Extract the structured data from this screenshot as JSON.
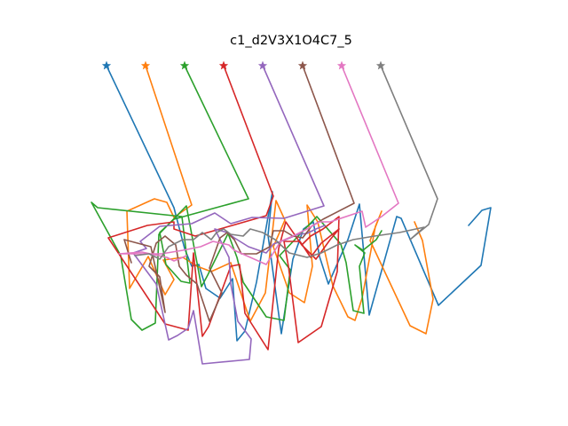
{
  "chart_data": {
    "type": "line",
    "title": "c1_d2V3X1O4C7_5",
    "xlabel": "",
    "ylabel": "",
    "axes_visible": false,
    "grid": false,
    "legend": "none",
    "start_marker": "star",
    "series": [
      {
        "color": "#1f77b4",
        "points": [
          [
            120,
            74
          ],
          [
            196,
            234
          ],
          [
            208,
            280
          ],
          [
            216,
            300
          ],
          [
            224,
            298
          ],
          [
            232,
            325
          ],
          [
            248,
            336
          ],
          [
            262,
            314
          ],
          [
            267,
            384
          ],
          [
            276,
            373
          ],
          [
            289,
            318
          ],
          [
            307,
            216
          ],
          [
            302,
            265
          ],
          [
            317,
            376
          ],
          [
            330,
            292
          ],
          [
            342,
            258
          ],
          [
            353,
            250
          ],
          [
            360,
            289
          ],
          [
            370,
            320
          ],
          [
            392,
            270
          ],
          [
            405,
            230
          ],
          [
            416,
            355
          ],
          [
            447,
            244
          ],
          [
            452,
            246
          ],
          [
            494,
            344
          ],
          [
            542,
            299
          ],
          [
            553,
            234
          ],
          [
            543,
            237
          ],
          [
            528,
            254
          ]
        ]
      },
      {
        "color": "#ff7f0e",
        "points": [
          [
            164,
            74
          ],
          [
            216,
            231
          ],
          [
            196,
            245
          ],
          [
            188,
            228
          ],
          [
            174,
            224
          ],
          [
            143,
            238
          ],
          [
            146,
            325
          ],
          [
            167,
            289
          ],
          [
            186,
            332
          ],
          [
            196,
            315
          ],
          [
            184,
            293
          ],
          [
            206,
            290
          ],
          [
            222,
            300
          ],
          [
            238,
            306
          ],
          [
            260,
            296
          ],
          [
            282,
            362
          ],
          [
            299,
            330
          ],
          [
            311,
            226
          ],
          [
            321,
            248
          ],
          [
            308,
            278
          ],
          [
            326,
            330
          ],
          [
            343,
            341
          ],
          [
            352,
            300
          ],
          [
            346,
            231
          ],
          [
            358,
            250
          ],
          [
            375,
            322
          ],
          [
            392,
            357
          ],
          [
            400,
            361
          ],
          [
            408,
            336
          ],
          [
            423,
            255
          ],
          [
            430,
            238
          ],
          [
            417,
            271
          ],
          [
            462,
            367
          ],
          [
            480,
            376
          ],
          [
            488,
            337
          ],
          [
            476,
            271
          ],
          [
            467,
            250
          ]
        ]
      },
      {
        "color": "#2ca02c",
        "points": [
          [
            208,
            74
          ],
          [
            280,
            224
          ],
          [
            196,
            247
          ],
          [
            180,
            262
          ],
          [
            187,
            298
          ],
          [
            204,
            317
          ],
          [
            214,
            319
          ],
          [
            205,
            244
          ],
          [
            110,
            234
          ],
          [
            103,
            228
          ],
          [
            136,
            288
          ],
          [
            148,
            360
          ],
          [
            160,
            372
          ],
          [
            175,
            364
          ],
          [
            179,
            264
          ],
          [
            210,
            232
          ],
          [
            227,
            323
          ],
          [
            234,
            310
          ],
          [
            257,
            263
          ],
          [
            267,
            290
          ],
          [
            274,
            318
          ],
          [
            300,
            357
          ],
          [
            320,
            361
          ],
          [
            327,
            304
          ],
          [
            315,
            288
          ],
          [
            357,
            244
          ],
          [
            384,
            275
          ],
          [
            390,
            296
          ],
          [
            398,
            350
          ],
          [
            410,
            353
          ],
          [
            405,
            300
          ],
          [
            411,
            285
          ],
          [
            400,
            276
          ],
          [
            409,
            282
          ],
          [
            424,
            270
          ],
          [
            430,
            260
          ]
        ]
      },
      {
        "color": "#d62728",
        "points": [
          [
            252,
            74
          ],
          [
            308,
            221
          ],
          [
            300,
            243
          ],
          [
            220,
            266
          ],
          [
            196,
            258
          ],
          [
            196,
            250
          ],
          [
            166,
            254
          ],
          [
            122,
            268
          ],
          [
            186,
            365
          ],
          [
            212,
            372
          ],
          [
            218,
            285
          ],
          [
            228,
            379
          ],
          [
            235,
            368
          ],
          [
            260,
            300
          ],
          [
            270,
            298
          ],
          [
            276,
            353
          ],
          [
            302,
            394
          ],
          [
            314,
            280
          ],
          [
            322,
            250
          ],
          [
            340,
            276
          ],
          [
            356,
            292
          ],
          [
            372,
            270
          ],
          [
            382,
            258
          ],
          [
            362,
            274
          ],
          [
            350,
            290
          ],
          [
            338,
            272
          ],
          [
            320,
            272
          ],
          [
            325,
            300
          ],
          [
            336,
            386
          ],
          [
            362,
            368
          ],
          [
            380,
            306
          ],
          [
            382,
            244
          ],
          [
            364,
            258
          ],
          [
            350,
            266
          ],
          [
            340,
            276
          ]
        ]
      },
      {
        "color": "#9467bd",
        "points": [
          [
            296,
            74
          ],
          [
            365,
            232
          ],
          [
            320,
            246
          ],
          [
            284,
            245
          ],
          [
            260,
            252
          ],
          [
            242,
            240
          ],
          [
            216,
            252
          ],
          [
            180,
            255
          ],
          [
            158,
            272
          ],
          [
            165,
            280
          ],
          [
            150,
            285
          ],
          [
            176,
            320
          ],
          [
            190,
            383
          ],
          [
            200,
            378
          ],
          [
            212,
            370
          ],
          [
            218,
            350
          ],
          [
            228,
            410
          ],
          [
            281,
            405
          ],
          [
            283,
            382
          ],
          [
            268,
            362
          ],
          [
            260,
            320
          ],
          [
            258,
            290
          ],
          [
            248,
            270
          ],
          [
            242,
            258
          ],
          [
            256,
            262
          ],
          [
            264,
            268
          ],
          [
            280,
            278
          ],
          [
            300,
            285
          ],
          [
            308,
            275
          ],
          [
            322,
            270
          ],
          [
            336,
            264
          ],
          [
            346,
            263
          ],
          [
            356,
            258
          ],
          [
            366,
            254
          ]
        ]
      },
      {
        "color": "#8c564b",
        "points": [
          [
            341,
            74
          ],
          [
            399,
            229
          ],
          [
            364,
            247
          ],
          [
            351,
            255
          ],
          [
            341,
            268
          ],
          [
            330,
            266
          ],
          [
            320,
            260
          ],
          [
            308,
            260
          ],
          [
            304,
            278
          ],
          [
            289,
            286
          ],
          [
            272,
            286
          ],
          [
            264,
            270
          ],
          [
            256,
            262
          ],
          [
            248,
            268
          ],
          [
            236,
            302
          ],
          [
            250,
            330
          ],
          [
            236,
            362
          ],
          [
            222,
            320
          ],
          [
            210,
            310
          ],
          [
            202,
            300
          ],
          [
            198,
            276
          ],
          [
            186,
            266
          ],
          [
            176,
            274
          ],
          [
            168,
            300
          ],
          [
            180,
            312
          ],
          [
            186,
            352
          ],
          [
            170,
            278
          ],
          [
            140,
            270
          ],
          [
            148,
            296
          ]
        ]
      },
      {
        "color": "#e377c2",
        "points": [
          [
            385,
            74
          ],
          [
            449,
            229
          ],
          [
            430,
            244
          ],
          [
            412,
            256
          ],
          [
            408,
            238
          ],
          [
            372,
            250
          ],
          [
            360,
            250
          ],
          [
            346,
            258
          ],
          [
            330,
            266
          ],
          [
            316,
            272
          ],
          [
            300,
            298
          ],
          [
            282,
            290
          ],
          [
            264,
            282
          ],
          [
            258,
            276
          ],
          [
            240,
            272
          ],
          [
            226,
            278
          ],
          [
            206,
            282
          ],
          [
            182,
            286
          ],
          [
            134,
            286
          ],
          [
            160,
            284
          ],
          [
            188,
            290
          ],
          [
            196,
            294
          ],
          [
            206,
            290
          ],
          [
            210,
            288
          ]
        ]
      },
      {
        "color": "#7f7f7f",
        "points": [
          [
            429,
            74
          ],
          [
            493,
            224
          ],
          [
            483,
            253
          ],
          [
            462,
            270
          ],
          [
            478,
            256
          ],
          [
            450,
            262
          ],
          [
            422,
            266
          ],
          [
            398,
            270
          ],
          [
            380,
            276
          ],
          [
            362,
            285
          ],
          [
            346,
            290
          ],
          [
            326,
            285
          ],
          [
            310,
            270
          ],
          [
            296,
            262
          ],
          [
            282,
            258
          ],
          [
            274,
            266
          ],
          [
            260,
            264
          ],
          [
            252,
            258
          ],
          [
            244,
            262
          ],
          [
            238,
            270
          ],
          [
            228,
            262
          ],
          [
            218,
            270
          ],
          [
            206,
            270
          ],
          [
            190,
            278
          ],
          [
            180,
            292
          ],
          [
            168,
            286
          ],
          [
            152,
            288
          ]
        ]
      }
    ]
  }
}
